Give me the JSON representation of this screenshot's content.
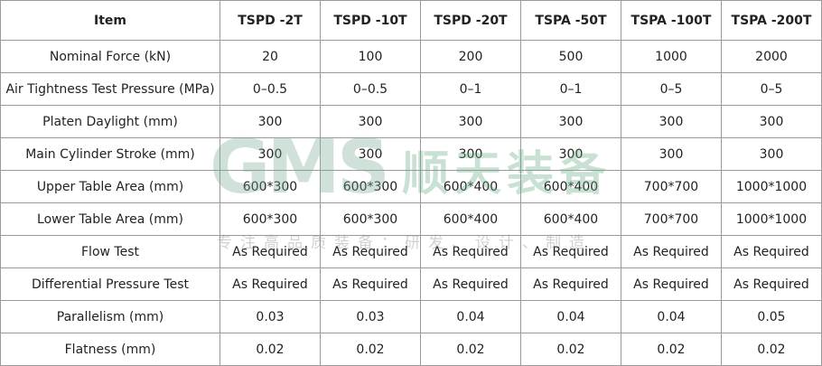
{
  "table": {
    "header": [
      "Item",
      "TSPD -2T",
      "TSPD -10T",
      "TSPD -20T",
      "TSPA -50T",
      "TSPA -100T",
      "TSPA -200T"
    ],
    "rows": [
      [
        "Nominal Force (kN)",
        "20",
        "100",
        "200",
        "500",
        "1000",
        "2000"
      ],
      [
        "Air Tightness Test Pressure (MPa)",
        "0–0.5",
        "0–0.5",
        "0–1",
        "0–1",
        "0–5",
        "0–5"
      ],
      [
        "Platen Daylight (mm)",
        "300",
        "300",
        "300",
        "300",
        "300",
        "300"
      ],
      [
        "Main Cylinder Stroke (mm)",
        "300",
        "300",
        "300",
        "300",
        "300",
        "300"
      ],
      [
        "Upper Table Area (mm)",
        "600*300",
        "600*300",
        "600*400",
        "600*400",
        "700*700",
        "1000*1000"
      ],
      [
        "Lower Table Area (mm)",
        "600*300",
        "600*300",
        "600*400",
        "600*400",
        "700*700",
        "1000*1000"
      ],
      [
        "Flow Test",
        "As Required",
        "As Required",
        "As Required",
        "As Required",
        "As Required",
        "As Required"
      ],
      [
        "Differential Pressure Test",
        "As Required",
        "As Required",
        "As Required",
        "As Required",
        "As Required",
        "As Required"
      ],
      [
        "Parallelism (mm)",
        "0.03",
        "0.03",
        "0.04",
        "0.04",
        "0.04",
        "0.05"
      ],
      [
        "Flatness (mm)",
        "0.02",
        "0.02",
        "0.02",
        "0.02",
        "0.02",
        "0.02"
      ]
    ]
  },
  "watermark": {
    "logo": "GMS",
    "name": "顺天装备",
    "slogan": "专注高品质装备：研发、设计、制造"
  }
}
